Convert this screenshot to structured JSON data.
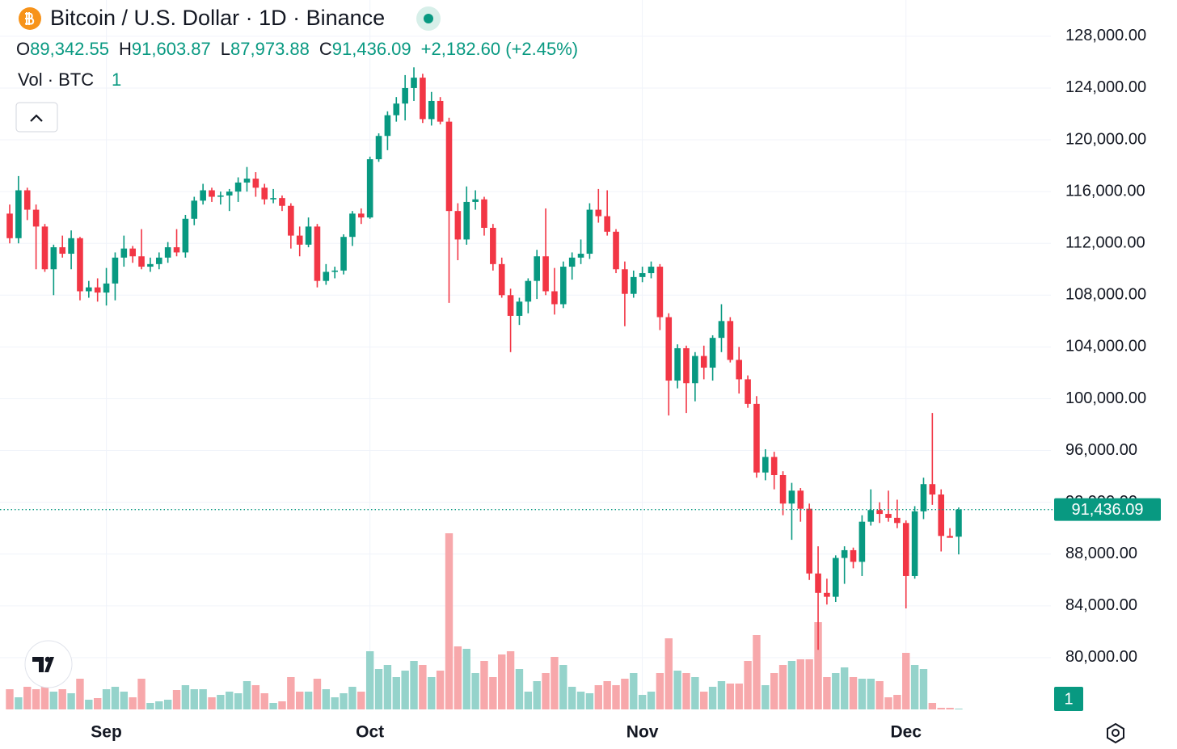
{
  "chart_data": {
    "type": "candlestick",
    "title": "Bitcoin / U.S. Dollar · 1D · Binance",
    "ohlc_legend": [
      {
        "label": "O",
        "value": "89,342.55"
      },
      {
        "label": "H",
        "value": "91,603.87"
      },
      {
        "label": "L",
        "value": "87,973.88"
      },
      {
        "label": "C",
        "value": "91,436.09"
      }
    ],
    "change": "+2,182.60 (+2.45%)",
    "volume_legend": {
      "label": "Vol · BTC",
      "value": "1"
    },
    "last_price_label": "91,436.09",
    "categories": [
      null,
      null,
      null,
      null,
      null,
      null,
      null,
      null,
      null,
      null,
      null,
      "Sep",
      null,
      null,
      null,
      null,
      null,
      null,
      null,
      null,
      null,
      null,
      null,
      null,
      null,
      null,
      null,
      null,
      null,
      null,
      null,
      null,
      null,
      null,
      null,
      null,
      null,
      null,
      null,
      null,
      null,
      "Oct",
      null,
      null,
      null,
      null,
      null,
      null,
      null,
      null,
      null,
      null,
      null,
      null,
      null,
      null,
      null,
      null,
      null,
      null,
      null,
      null,
      null,
      null,
      null,
      null,
      null,
      null,
      null,
      null,
      null,
      null,
      "Nov",
      null,
      null,
      null,
      null,
      null,
      null,
      null,
      null,
      null,
      null,
      null,
      null,
      null,
      null,
      null,
      null,
      null,
      null,
      null,
      null,
      null,
      null,
      null,
      null,
      null,
      null,
      null,
      null,
      null,
      "Dec",
      null,
      null,
      null,
      null,
      null,
      null
    ],
    "open": [
      114300,
      112400,
      116100,
      114600,
      113300,
      110000,
      111700,
      111200,
      112400,
      108300,
      108600,
      108200,
      108900,
      110900,
      111600,
      111000,
      110200,
      110400,
      110900,
      111700,
      111300,
      113900,
      115300,
      116100,
      115600,
      115700,
      116000,
      116700,
      117000,
      116300,
      115400,
      115500,
      114900,
      112600,
      111900,
      113300,
      109100,
      109800,
      109900,
      112500,
      114300,
      114000,
      118500,
      120300,
      121900,
      122800,
      124000,
      124800,
      121600,
      123000,
      121400,
      114500,
      112300,
      115200,
      115400,
      113200,
      110400,
      108000,
      106400,
      107500,
      109100,
      111000,
      108300,
      107300,
      110200,
      110900,
      111200,
      114600,
      114100,
      112900,
      110000,
      108100,
      109400,
      109700,
      110200,
      106300,
      101400,
      103900,
      101200,
      103300,
      102400,
      104700,
      106000,
      103000,
      101500,
      99600,
      94300,
      95500,
      94100,
      91900,
      92900,
      91500,
      86500,
      85000,
      84700,
      87700,
      88300,
      87400,
      90500,
      91400,
      91100,
      90800,
      90400,
      86300,
      91300,
      93400,
      92600,
      89400,
      89342.55
    ],
    "high": [
      115000,
      117200,
      116300,
      115000,
      113500,
      111900,
      112600,
      113000,
      112500,
      109100,
      109300,
      110100,
      111300,
      112600,
      111800,
      113100,
      110900,
      111300,
      112100,
      113100,
      114200,
      115600,
      116600,
      116300,
      116000,
      116200,
      117100,
      117900,
      117500,
      116600,
      116200,
      115700,
      115100,
      113300,
      114000,
      113500,
      110400,
      110200,
      112700,
      114500,
      114700,
      118700,
      120500,
      122200,
      123300,
      125000,
      125600,
      125100,
      123700,
      123300,
      121700,
      115100,
      116400,
      116100,
      115600,
      113500,
      110900,
      108500,
      107800,
      109300,
      111500,
      114700,
      110100,
      110600,
      111300,
      112300,
      115100,
      116200,
      116100,
      113100,
      110600,
      109900,
      110200,
      110600,
      110400,
      106600,
      104200,
      104100,
      103600,
      104100,
      104900,
      107300,
      106300,
      104000,
      101800,
      100200,
      96100,
      95900,
      94400,
      93500,
      93100,
      91900,
      88600,
      86100,
      87900,
      88600,
      88500,
      91000,
      93000,
      92000,
      92900,
      92200,
      90600,
      91700,
      93900,
      98900,
      93000,
      90000,
      91603.87
    ],
    "low": [
      112000,
      112000,
      113800,
      110000,
      109800,
      108000,
      110900,
      110000,
      107600,
      107800,
      107500,
      107200,
      107600,
      110200,
      110500,
      110000,
      109800,
      110000,
      110500,
      111000,
      110900,
      113400,
      115000,
      115200,
      115000,
      114500,
      115200,
      116000,
      115600,
      115000,
      115100,
      114500,
      111600,
      111000,
      111700,
      108600,
      108800,
      109300,
      109600,
      111800,
      113500,
      113900,
      118300,
      119200,
      121400,
      121500,
      123000,
      121300,
      121100,
      121200,
      107400,
      110700,
      111900,
      114600,
      112600,
      109900,
      107800,
      103600,
      105700,
      106600,
      107700,
      108000,
      106500,
      107000,
      109200,
      110400,
      110800,
      113600,
      112600,
      109700,
      105600,
      107800,
      109000,
      109300,
      105300,
      98700,
      100800,
      98900,
      99800,
      101500,
      101400,
      103600,
      102800,
      100400,
      99300,
      93900,
      93700,
      93000,
      91000,
      89100,
      90500,
      86000,
      80600,
      84100,
      84300,
      85700,
      86900,
      86300,
      90200,
      90400,
      90500,
      90000,
      83800,
      86100,
      90700,
      91800,
      88200,
      89300,
      87973.88
    ],
    "close": [
      112400,
      116100,
      114600,
      113300,
      110000,
      111700,
      111200,
      112400,
      108300,
      108600,
      108200,
      108900,
      110900,
      111600,
      111000,
      110200,
      110400,
      110900,
      111700,
      111300,
      113900,
      115300,
      116100,
      115600,
      115700,
      116000,
      116700,
      117000,
      116300,
      115400,
      115500,
      114900,
      112600,
      111900,
      113300,
      109100,
      109800,
      109900,
      112500,
      114300,
      114000,
      118500,
      120300,
      121900,
      122800,
      124000,
      124800,
      121600,
      123000,
      121400,
      114500,
      112300,
      115200,
      115400,
      113200,
      110400,
      108000,
      106400,
      107500,
      109100,
      111000,
      108300,
      107300,
      110200,
      110900,
      111200,
      114600,
      114100,
      112900,
      110000,
      108100,
      109400,
      109700,
      110200,
      106300,
      101400,
      103900,
      101200,
      103300,
      102400,
      104700,
      106000,
      103000,
      101500,
      99600,
      94300,
      95500,
      94100,
      91900,
      92900,
      91500,
      86500,
      85000,
      84700,
      87700,
      88300,
      87400,
      90500,
      91400,
      91100,
      90800,
      90400,
      86300,
      91300,
      93400,
      92600,
      89400,
      89253.49,
      91436.09
    ],
    "volume": [
      12500,
      7500,
      14000,
      12500,
      15000,
      11000,
      12500,
      10000,
      19000,
      6000,
      7000,
      12500,
      14000,
      11000,
      7500,
      19000,
      4000,
      5000,
      6000,
      12000,
      15000,
      12500,
      12500,
      7500,
      9000,
      11000,
      10000,
      17500,
      15000,
      10000,
      4000,
      5000,
      20000,
      11000,
      11000,
      19000,
      12500,
      7500,
      10000,
      14000,
      11000,
      36000,
      25000,
      27500,
      20000,
      24000,
      30000,
      27500,
      20000,
      24000,
      109000,
      39000,
      37500,
      22500,
      30000,
      20000,
      34000,
      36000,
      25000,
      11000,
      17500,
      22500,
      32500,
      27500,
      14000,
      11000,
      10000,
      15000,
      17500,
      15000,
      19000,
      22500,
      9000,
      11000,
      22500,
      44000,
      24000,
      22500,
      20000,
      11000,
      14000,
      17500,
      16000,
      16000,
      30000,
      46000,
      15000,
      22500,
      27500,
      30000,
      31000,
      31000,
      54000,
      20000,
      22500,
      26000,
      20000,
      19000,
      19000,
      17500,
      7500,
      9000,
      35000,
      27500,
      25000,
      4000,
      1000,
      1000,
      1
    ],
    "up_color": "#089981",
    "down_color": "#f23645",
    "up_volume_color": "#95d3cb",
    "down_volume_color": "#f7a8ab",
    "ylim": [
      76000,
      130800
    ],
    "yticks": [
      {
        "value": 80000,
        "label": "80,000.00"
      },
      {
        "value": 84000,
        "label": "84,000.00"
      },
      {
        "value": 88000,
        "label": "88,000.00"
      },
      {
        "value": 92000,
        "label": "92,000.00"
      },
      {
        "value": 96000,
        "label": "96,000.00"
      },
      {
        "value": 100000,
        "label": "100,000.00"
      },
      {
        "value": 104000,
        "label": "104,000.00"
      },
      {
        "value": 108000,
        "label": "108,000.00"
      },
      {
        "value": 112000,
        "label": "112,000.00"
      },
      {
        "value": 116000,
        "label": "116,000.00"
      },
      {
        "value": 120000,
        "label": "120,000.00"
      },
      {
        "value": 124000,
        "label": "124,000.00"
      },
      {
        "value": 128000,
        "label": "128,000.00"
      }
    ],
    "grid": true
  }
}
